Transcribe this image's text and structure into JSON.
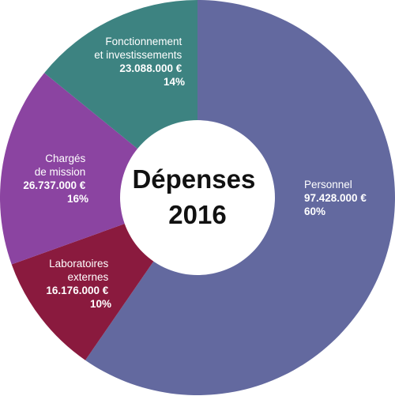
{
  "chart_data": {
    "type": "pie",
    "title": "Dépenses 2016",
    "title_lines": [
      "Dépenses",
      "2016"
    ],
    "start_angle_deg": 0,
    "direction": "clockwise",
    "slices": [
      {
        "label_lines": [
          "Personnel"
        ],
        "amount": "97.428.000 €",
        "percent_text": "60%",
        "value": 97428000,
        "color": "#63699f"
      },
      {
        "label_lines": [
          "Laboratoires",
          "externes"
        ],
        "amount": "16.176.000 €",
        "percent_text": "10%",
        "value": 16176000,
        "color": "#8a1a3e"
      },
      {
        "label_lines": [
          "Chargés",
          "de mission"
        ],
        "amount": "26.737.000 €",
        "percent_text": "16%",
        "value": 26737000,
        "color": "#8b44a1"
      },
      {
        "label_lines": [
          "Fonctionnement",
          "et investissements"
        ],
        "amount": "23.088.000 €",
        "percent_text": "14%",
        "value": 23088000,
        "color": "#3d8381"
      }
    ]
  }
}
